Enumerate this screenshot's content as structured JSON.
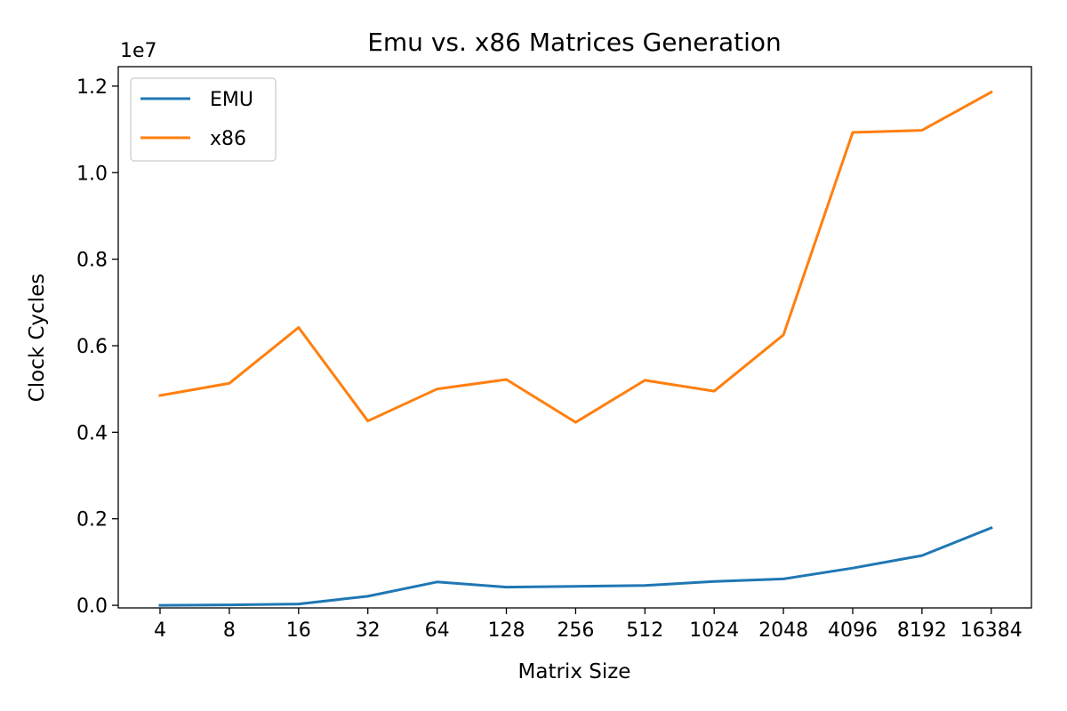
{
  "chart_data": {
    "type": "line",
    "title": "Emu vs. x86 Matrices Generation",
    "xlabel": "Matrix Size",
    "ylabel": "Clock Cycles",
    "y_multiplier_label": "1e7",
    "y_multiplier": 10000000,
    "categories": [
      "4",
      "8",
      "16",
      "32",
      "64",
      "128",
      "256",
      "512",
      "1024",
      "2048",
      "4096",
      "8192",
      "16384"
    ],
    "x_tick_labels": [
      "4",
      "8",
      "16",
      "32",
      "64",
      "128",
      "256",
      "512",
      "1024",
      "2048",
      "4096",
      "8192",
      "16384"
    ],
    "ylim": [
      -60000,
      12450000
    ],
    "y_ticks": [
      0,
      2000000,
      4000000,
      6000000,
      8000000,
      10000000,
      12000000
    ],
    "y_tick_labels": [
      "0.0",
      "0.2",
      "0.4",
      "0.6",
      "0.8",
      "1.0",
      "1.2"
    ],
    "grid": false,
    "legend_position": "top-left",
    "series": [
      {
        "name": "EMU",
        "color": "#1f77b4",
        "values": [
          0,
          10000,
          30000,
          210000,
          540000,
          420000,
          440000,
          460000,
          550000,
          610000,
          860000,
          1150000,
          1790000
        ]
      },
      {
        "name": "x86",
        "color": "#ff7f0e",
        "values": [
          4850000,
          5130000,
          6420000,
          4260000,
          5000000,
          5220000,
          4230000,
          5200000,
          4950000,
          6250000,
          10930000,
          10980000,
          11860000
        ]
      }
    ]
  }
}
